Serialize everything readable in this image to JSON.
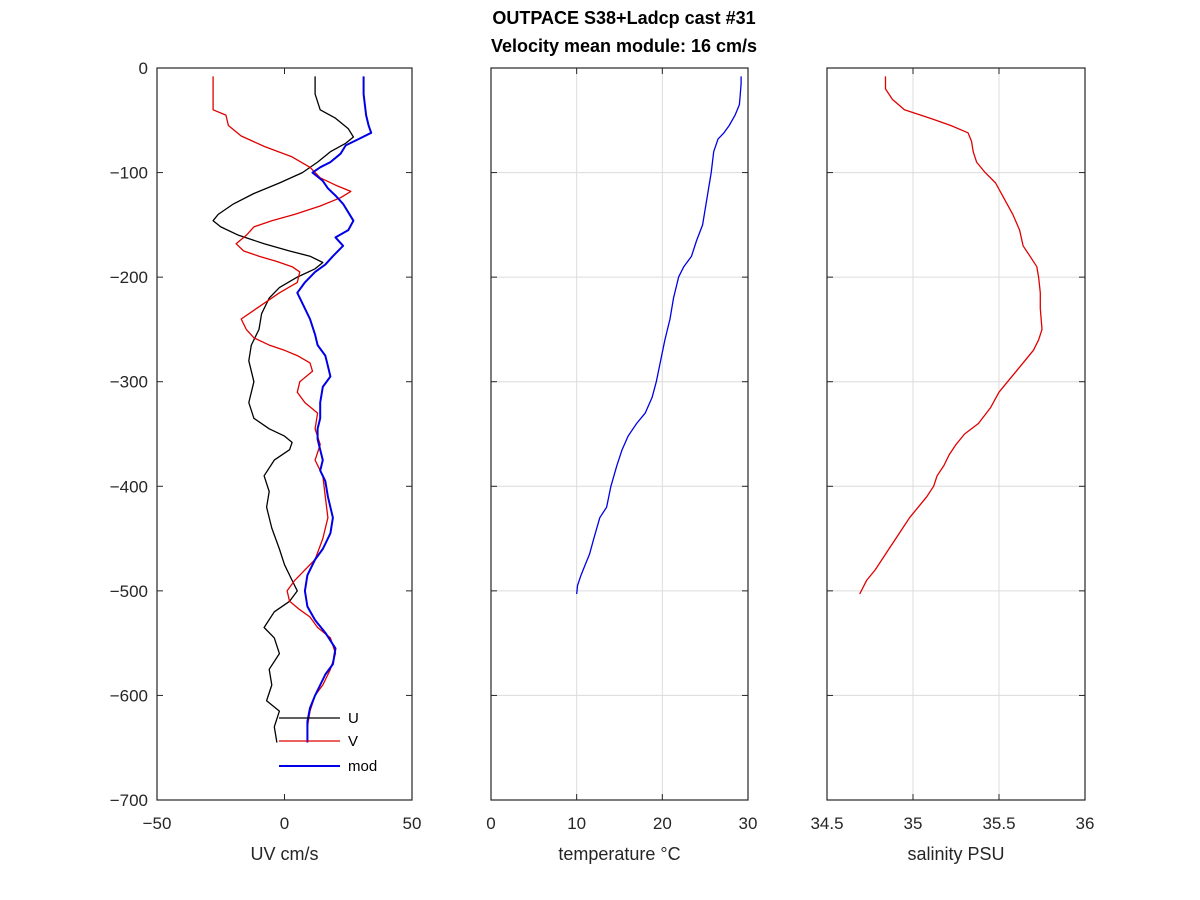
{
  "title_line1": "OUTPACE S38+Ladcp cast #31",
  "title_line2": "Velocity mean module:  16 cm/s",
  "chart_data": [
    {
      "type": "line",
      "xlabel": "UV cm/s",
      "ylabel": "",
      "xlim": [
        -50,
        50
      ],
      "ylim": [
        -700,
        0
      ],
      "xticks": [
        -50,
        0,
        50
      ],
      "yticks": [
        0,
        -100,
        -200,
        -300,
        -400,
        -500,
        -600,
        -700
      ],
      "grid": false,
      "legend": "bottom-right",
      "series": [
        {
          "name": "U",
          "color": "#000000",
          "width": 1.3,
          "points": [
            [
              12,
              -8
            ],
            [
              12,
              -25
            ],
            [
              14,
              -40
            ],
            [
              20,
              -48
            ],
            [
              25,
              -58
            ],
            [
              27,
              -66
            ],
            [
              24,
              -72
            ],
            [
              18,
              -80
            ],
            [
              13,
              -90
            ],
            [
              7,
              -100
            ],
            [
              -2,
              -110
            ],
            [
              -12,
              -120
            ],
            [
              -20,
              -130
            ],
            [
              -26,
              -140
            ],
            [
              -28,
              -146
            ],
            [
              -25,
              -152
            ],
            [
              -18,
              -160
            ],
            [
              -8,
              -168
            ],
            [
              2,
              -175
            ],
            [
              10,
              -180
            ],
            [
              15,
              -186
            ],
            [
              12,
              -192
            ],
            [
              5,
              -200
            ],
            [
              -2,
              -210
            ],
            [
              -6,
              -220
            ],
            [
              -9,
              -235
            ],
            [
              -10,
              -250
            ],
            [
              -13,
              -265
            ],
            [
              -14,
              -280
            ],
            [
              -12,
              -300
            ],
            [
              -14,
              -320
            ],
            [
              -12,
              -335
            ],
            [
              -6,
              -345
            ],
            [
              0,
              -352
            ],
            [
              3,
              -358
            ],
            [
              2,
              -365
            ],
            [
              -4,
              -375
            ],
            [
              -8,
              -390
            ],
            [
              -6,
              -405
            ],
            [
              -7,
              -420
            ],
            [
              -5,
              -440
            ],
            [
              -2,
              -460
            ],
            [
              0,
              -475
            ],
            [
              3,
              -490
            ],
            [
              5,
              -500
            ],
            [
              2,
              -510
            ],
            [
              -4,
              -520
            ],
            [
              -8,
              -535
            ],
            [
              -4,
              -545
            ],
            [
              -2,
              -560
            ],
            [
              -6,
              -575
            ],
            [
              -5,
              -590
            ],
            [
              -7,
              -605
            ],
            [
              -2,
              -615
            ],
            [
              -4,
              -630
            ],
            [
              -3,
              -645
            ]
          ]
        },
        {
          "name": "V",
          "color": "#e00000",
          "width": 1.3,
          "points": [
            [
              -28,
              -8
            ],
            [
              -28,
              -25
            ],
            [
              -28,
              -40
            ],
            [
              -23,
              -45
            ],
            [
              -22,
              -55
            ],
            [
              -17,
              -65
            ],
            [
              -8,
              -75
            ],
            [
              3,
              -85
            ],
            [
              10,
              -95
            ],
            [
              14,
              -105
            ],
            [
              20,
              -112
            ],
            [
              26,
              -118
            ],
            [
              22,
              -124
            ],
            [
              14,
              -132
            ],
            [
              4,
              -140
            ],
            [
              -5,
              -146
            ],
            [
              -12,
              -152
            ],
            [
              -15,
              -160
            ],
            [
              -19,
              -168
            ],
            [
              -16,
              -175
            ],
            [
              -10,
              -180
            ],
            [
              -3,
              -185
            ],
            [
              3,
              -190
            ],
            [
              6,
              -195
            ],
            [
              5,
              -205
            ],
            [
              -2,
              -215
            ],
            [
              -8,
              -225
            ],
            [
              -17,
              -240
            ],
            [
              -15,
              -250
            ],
            [
              -12,
              -258
            ],
            [
              -6,
              -265
            ],
            [
              0,
              -270
            ],
            [
              5,
              -275
            ],
            [
              10,
              -282
            ],
            [
              11,
              -290
            ],
            [
              6,
              -300
            ],
            [
              5,
              -310
            ],
            [
              8,
              -320
            ],
            [
              13,
              -330
            ],
            [
              12,
              -345
            ],
            [
              14,
              -360
            ],
            [
              12,
              -375
            ],
            [
              15,
              -390
            ],
            [
              16,
              -410
            ],
            [
              17,
              -430
            ],
            [
              15,
              -450
            ],
            [
              12,
              -470
            ],
            [
              8,
              -480
            ],
            [
              4,
              -490
            ],
            [
              1,
              -500
            ],
            [
              2,
              -510
            ],
            [
              6,
              -518
            ],
            [
              10,
              -525
            ],
            [
              13,
              -535
            ],
            [
              18,
              -545
            ],
            [
              20,
              -560
            ],
            [
              18,
              -575
            ],
            [
              15,
              -590
            ],
            [
              12,
              -600
            ],
            [
              10,
              -615
            ],
            [
              9,
              -630
            ],
            [
              9,
              -645
            ]
          ]
        },
        {
          "name": "mod",
          "color": "#0000e6",
          "width": 2,
          "points": [
            [
              31,
              -8
            ],
            [
              31,
              -25
            ],
            [
              32,
              -45
            ],
            [
              33,
              -55
            ],
            [
              34,
              -62
            ],
            [
              29,
              -68
            ],
            [
              24,
              -74
            ],
            [
              22,
              -82
            ],
            [
              18,
              -90
            ],
            [
              14,
              -95
            ],
            [
              11,
              -100
            ],
            [
              15,
              -108
            ],
            [
              17,
              -115
            ],
            [
              20,
              -122
            ],
            [
              23,
              -130
            ],
            [
              25,
              -138
            ],
            [
              27,
              -146
            ],
            [
              25,
              -155
            ],
            [
              20,
              -162
            ],
            [
              23,
              -170
            ],
            [
              19,
              -180
            ],
            [
              16,
              -188
            ],
            [
              12,
              -195
            ],
            [
              8,
              -205
            ],
            [
              5,
              -215
            ],
            [
              7,
              -225
            ],
            [
              10,
              -240
            ],
            [
              12,
              -255
            ],
            [
              13,
              -265
            ],
            [
              16,
              -275
            ],
            [
              17,
              -285
            ],
            [
              18,
              -295
            ],
            [
              15,
              -305
            ],
            [
              14,
              -320
            ],
            [
              14,
              -335
            ],
            [
              13,
              -345
            ],
            [
              13,
              -355
            ],
            [
              14,
              -365
            ],
            [
              15,
              -375
            ],
            [
              14,
              -385
            ],
            [
              16,
              -395
            ],
            [
              17,
              -410
            ],
            [
              18,
              -420
            ],
            [
              19,
              -430
            ],
            [
              18,
              -445
            ],
            [
              15,
              -460
            ],
            [
              12,
              -470
            ],
            [
              9,
              -485
            ],
            [
              8,
              -500
            ],
            [
              9,
              -515
            ],
            [
              12,
              -528
            ],
            [
              16,
              -540
            ],
            [
              20,
              -555
            ],
            [
              19,
              -570
            ],
            [
              16,
              -580
            ],
            [
              14,
              -590
            ],
            [
              12,
              -600
            ],
            [
              10,
              -612
            ],
            [
              9,
              -625
            ],
            [
              9,
              -645
            ]
          ]
        }
      ]
    },
    {
      "type": "line",
      "xlabel": "temperature °C",
      "ylabel": "",
      "xlim": [
        0,
        30
      ],
      "ylim": [
        -700,
        0
      ],
      "xticks": [
        0,
        10,
        20,
        30
      ],
      "yticks": [
        0,
        -100,
        -200,
        -300,
        -400,
        -500,
        -600,
        -700
      ],
      "grid": true,
      "series": [
        {
          "name": "",
          "color": "#0000e6",
          "width": 1.3,
          "points": [
            [
              29.2,
              -8
            ],
            [
              29.2,
              -15
            ],
            [
              29.1,
              -25
            ],
            [
              29.0,
              -35
            ],
            [
              28.5,
              -45
            ],
            [
              27.8,
              -55
            ],
            [
              27.2,
              -62
            ],
            [
              26.5,
              -68
            ],
            [
              26.0,
              -80
            ],
            [
              25.7,
              -100
            ],
            [
              25.2,
              -125
            ],
            [
              24.7,
              -150
            ],
            [
              24.0,
              -165
            ],
            [
              23.4,
              -180
            ],
            [
              22.5,
              -190
            ],
            [
              21.9,
              -200
            ],
            [
              21.3,
              -220
            ],
            [
              20.9,
              -240
            ],
            [
              20.3,
              -260
            ],
            [
              19.8,
              -280
            ],
            [
              19.3,
              -300
            ],
            [
              18.8,
              -315
            ],
            [
              18.0,
              -330
            ],
            [
              17.0,
              -340
            ],
            [
              16.0,
              -352
            ],
            [
              15.3,
              -365
            ],
            [
              14.7,
              -380
            ],
            [
              14.0,
              -400
            ],
            [
              13.5,
              -420
            ],
            [
              12.7,
              -430
            ],
            [
              12.0,
              -450
            ],
            [
              11.5,
              -465
            ],
            [
              11.0,
              -475
            ],
            [
              10.5,
              -485
            ],
            [
              10.1,
              -495
            ],
            [
              10.0,
              -503
            ]
          ]
        }
      ]
    },
    {
      "type": "line",
      "xlabel": "salinity PSU",
      "ylabel": "",
      "xlim": [
        34.5,
        36
      ],
      "ylim": [
        -700,
        0
      ],
      "xticks": [
        34.5,
        35,
        35.5,
        36
      ],
      "xticklabels": [
        "34.5",
        "35",
        "35.5",
        "36"
      ],
      "yticks": [
        0,
        -100,
        -200,
        -300,
        -400,
        -500,
        -600,
        -700
      ],
      "grid": true,
      "series": [
        {
          "name": "",
          "color": "#e00000",
          "width": 1.3,
          "points": [
            [
              34.84,
              -8
            ],
            [
              34.84,
              -20
            ],
            [
              34.88,
              -30
            ],
            [
              34.95,
              -40
            ],
            [
              35.1,
              -48
            ],
            [
              35.22,
              -55
            ],
            [
              35.32,
              -62
            ],
            [
              35.34,
              -70
            ],
            [
              35.35,
              -80
            ],
            [
              35.37,
              -90
            ],
            [
              35.42,
              -100
            ],
            [
              35.48,
              -110
            ],
            [
              35.53,
              -125
            ],
            [
              35.58,
              -140
            ],
            [
              35.62,
              -155
            ],
            [
              35.64,
              -170
            ],
            [
              35.68,
              -180
            ],
            [
              35.72,
              -190
            ],
            [
              35.73,
              -200
            ],
            [
              35.74,
              -215
            ],
            [
              35.74,
              -230
            ],
            [
              35.75,
              -250
            ],
            [
              35.73,
              -260
            ],
            [
              35.7,
              -270
            ],
            [
              35.65,
              -280
            ],
            [
              35.6,
              -290
            ],
            [
              35.55,
              -300
            ],
            [
              35.5,
              -310
            ],
            [
              35.45,
              -325
            ],
            [
              35.38,
              -340
            ],
            [
              35.3,
              -350
            ],
            [
              35.25,
              -360
            ],
            [
              35.21,
              -370
            ],
            [
              35.18,
              -380
            ],
            [
              35.14,
              -390
            ],
            [
              35.12,
              -400
            ],
            [
              35.08,
              -410
            ],
            [
              35.03,
              -420
            ],
            [
              34.98,
              -430
            ],
            [
              34.94,
              -440
            ],
            [
              34.9,
              -450
            ],
            [
              34.86,
              -460
            ],
            [
              34.82,
              -470
            ],
            [
              34.78,
              -480
            ],
            [
              34.73,
              -490
            ],
            [
              34.69,
              -503
            ]
          ]
        }
      ]
    }
  ]
}
